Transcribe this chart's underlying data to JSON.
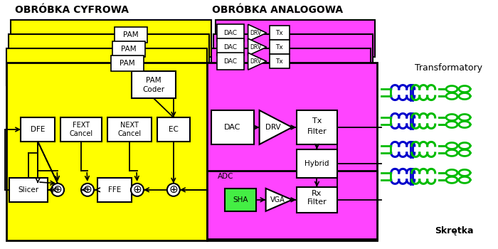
{
  "title_digital": "OBRÓBKA CYFROWA",
  "title_analog": "OBRÓBKA ANALOGOWA",
  "label_transformatory": "Transformatory",
  "label_skretka": "Skrętka",
  "yellow": "#FFFF00",
  "magenta": "#FF44FF",
  "white": "#FFFFFF",
  "green_coil": "#00BB00",
  "blue_coil": "#0000CC",
  "light_green": "#44EE44",
  "bg_color": "#FFFFFF"
}
